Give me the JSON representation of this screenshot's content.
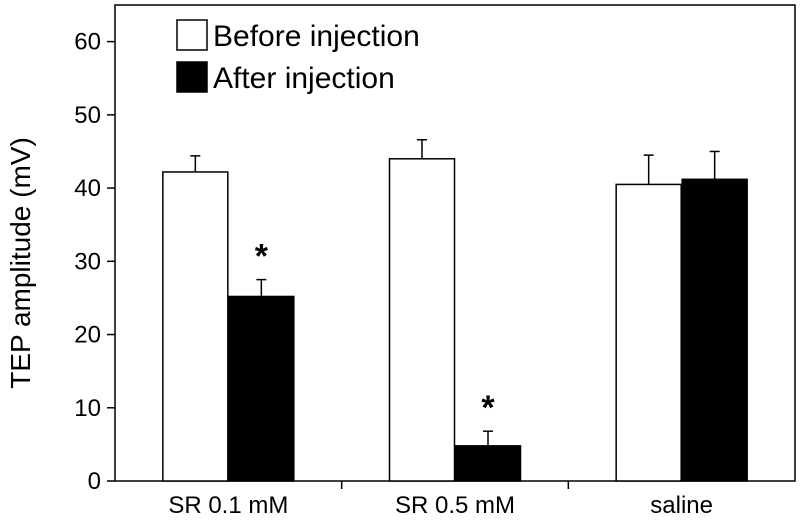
{
  "chart_data": {
    "type": "bar",
    "ylabel": "TEP amplitude (mV)",
    "xlabel": "",
    "ylim": [
      0,
      65
    ],
    "yticks": [
      0,
      10,
      20,
      30,
      40,
      50,
      60
    ],
    "ytick_labels": [
      "0",
      "10",
      "20",
      "30",
      "40",
      "50",
      "60"
    ],
    "categories": [
      "SR 0.1 mM",
      "SR 0.5 mM",
      "saline"
    ],
    "series": [
      {
        "name": "Before injection",
        "values": [
          42.2,
          44.0,
          40.5
        ],
        "errors": [
          2.2,
          2.6,
          4.0
        ],
        "fill": "#ffffff"
      },
      {
        "name": "After injection",
        "values": [
          25.2,
          4.8,
          41.2
        ],
        "errors": [
          2.3,
          2.0,
          3.8
        ],
        "fill": "#000000"
      }
    ],
    "significance": [
      {
        "category": 0,
        "series": 1,
        "marker": "*"
      },
      {
        "category": 1,
        "series": 1,
        "marker": "*"
      }
    ],
    "legend_position": "top-left",
    "grid": false
  }
}
